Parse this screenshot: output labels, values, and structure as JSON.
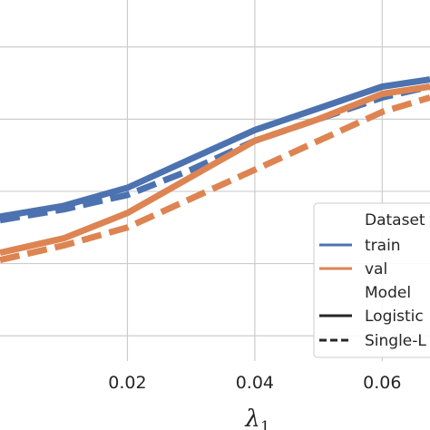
{
  "chart_data": {
    "type": "line",
    "title": "",
    "xlabel": "λ",
    "xlabel_sub": "1",
    "ylabel": "",
    "xlim": [
      0.0,
      0.0675
    ],
    "ylim": [
      0.0,
      1.0
    ],
    "x_ticks": [
      0.02,
      0.04,
      0.06
    ],
    "x_tick_labels": [
      "0.02",
      "0.04",
      "0.06"
    ],
    "y_grid": [
      0.07,
      0.27,
      0.47,
      0.67,
      0.87
    ],
    "grid": true,
    "legend_position": "lower-right",
    "legend": {
      "groups": [
        {
          "title": "Dataset",
          "entries": [
            {
              "label": "train",
              "color": "#4c72b0",
              "style": "solid"
            },
            {
              "label": "val",
              "color": "#dd8452",
              "style": "solid"
            }
          ]
        },
        {
          "title": "Model",
          "entries": [
            {
              "label": "Logistic",
              "color": "#262626",
              "style": "solid"
            },
            {
              "label": "Single-L",
              "color": "#262626",
              "style": "dashed"
            }
          ]
        }
      ]
    },
    "series": [
      {
        "dataset": "train",
        "model": "Logistic",
        "color": "#4c72b0",
        "style": "solid",
        "x": [
          0.0,
          0.01,
          0.02,
          0.03,
          0.04,
          0.05,
          0.06,
          0.0675
        ],
        "y": [
          0.4,
          0.43,
          0.48,
          0.56,
          0.64,
          0.7,
          0.76,
          0.78
        ]
      },
      {
        "dataset": "train",
        "model": "Single-L",
        "color": "#4c72b0",
        "style": "dashed",
        "x": [
          0.0,
          0.01,
          0.02,
          0.03,
          0.04,
          0.05,
          0.06,
          0.0675
        ],
        "y": [
          0.39,
          0.42,
          0.46,
          0.53,
          0.61,
          0.67,
          0.73,
          0.76
        ]
      },
      {
        "dataset": "val",
        "model": "Logistic",
        "color": "#dd8452",
        "style": "solid",
        "x": [
          0.0,
          0.01,
          0.02,
          0.03,
          0.04,
          0.05,
          0.06,
          0.0675
        ],
        "y": [
          0.3,
          0.34,
          0.41,
          0.51,
          0.61,
          0.67,
          0.74,
          0.76
        ]
      },
      {
        "dataset": "val",
        "model": "Single-L",
        "color": "#dd8452",
        "style": "dashed",
        "x": [
          0.0,
          0.01,
          0.02,
          0.03,
          0.04,
          0.05,
          0.06,
          0.0675
        ],
        "y": [
          0.28,
          0.32,
          0.37,
          0.45,
          0.53,
          0.61,
          0.69,
          0.73
        ]
      }
    ]
  }
}
